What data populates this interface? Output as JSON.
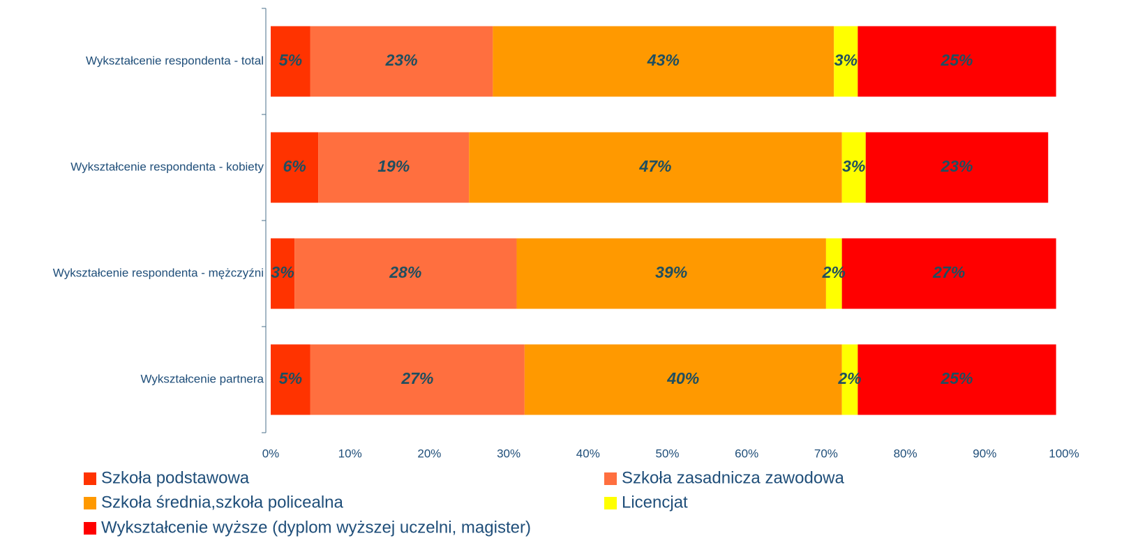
{
  "chart_data": {
    "type": "stacked_bar_horizontal",
    "categories": [
      "Wykształcenie respondenta - total",
      "Wykształcenie respondenta - kobiety",
      "Wykształcenie respondenta - mężczyźni",
      "Wykształcenie partnera"
    ],
    "series": [
      {
        "name": "Szkoła podstawowa",
        "color": "#ff3300",
        "values": [
          5,
          6,
          3,
          5
        ],
        "value_labels": [
          "5%",
          "6%",
          "3%",
          "5%"
        ]
      },
      {
        "name": "Szkoła zasadnicza zawodowa",
        "color": "#ff6f3f",
        "values": [
          23,
          19,
          28,
          27
        ],
        "value_labels": [
          "23%",
          "19%",
          "28%",
          "27%"
        ]
      },
      {
        "name": "Szkoła średnia,szkoła policealna",
        "color": "#ff9900",
        "values": [
          43,
          47,
          39,
          40
        ],
        "value_labels": [
          "43%",
          "47%",
          "39%",
          "40%"
        ]
      },
      {
        "name": "Licencjat",
        "color": "#ffff00",
        "values": [
          3,
          3,
          2,
          2
        ],
        "value_labels": [
          "3%",
          "3%",
          "2%",
          "2%"
        ]
      },
      {
        "name": "Wykształcenie wyższe (dyplom wyższej uczelni, magister)",
        "color": "#ff0000",
        "values": [
          25,
          23,
          27,
          25
        ],
        "value_labels": [
          "25%",
          "23%",
          "27%",
          "25%"
        ]
      }
    ],
    "xlim": [
      0,
      100
    ],
    "xticks": [
      {
        "value": 0,
        "label": "0%"
      },
      {
        "value": 10,
        "label": "10%"
      },
      {
        "value": 20,
        "label": "20%"
      },
      {
        "value": 30,
        "label": "30%"
      },
      {
        "value": 40,
        "label": "40%"
      },
      {
        "value": 50,
        "label": "50%"
      },
      {
        "value": 60,
        "label": "60%"
      },
      {
        "value": 70,
        "label": "70%"
      },
      {
        "value": 80,
        "label": "80%"
      },
      {
        "value": 90,
        "label": "90%"
      },
      {
        "value": 100,
        "label": "100%"
      }
    ],
    "legend": "bottom"
  }
}
